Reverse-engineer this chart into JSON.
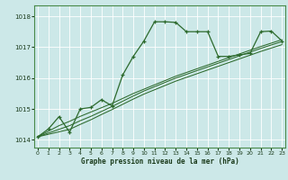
{
  "background_color": "#cce8e8",
  "grid_color": "#ffffff",
  "line_color": "#2d6a2d",
  "text_color": "#1a3a1a",
  "xlabel_text": "Graphe pression niveau de la mer (hPa)",
  "ylim": [
    1013.75,
    1018.35
  ],
  "xlim": [
    -0.3,
    23.3
  ],
  "yticks": [
    1014,
    1015,
    1016,
    1017,
    1018
  ],
  "xticks": [
    0,
    1,
    2,
    3,
    4,
    5,
    6,
    7,
    8,
    9,
    10,
    11,
    12,
    13,
    14,
    15,
    16,
    17,
    18,
    19,
    20,
    21,
    22,
    23
  ],
  "s1": [
    1014.1,
    1014.35,
    1014.75,
    1014.25,
    1015.0,
    1015.05,
    1015.3,
    1015.1,
    1016.1,
    1016.7,
    1017.2,
    1017.82,
    1017.82,
    1017.8,
    1017.5,
    1017.5,
    1017.5,
    1016.7,
    1016.7,
    1016.75,
    1016.8,
    1017.5,
    1017.52,
    1017.2
  ],
  "s2": [
    1014.1,
    1014.18,
    1014.26,
    1014.34,
    1014.5,
    1014.65,
    1014.82,
    1014.98,
    1015.15,
    1015.32,
    1015.48,
    1015.62,
    1015.76,
    1015.9,
    1016.02,
    1016.14,
    1016.26,
    1016.38,
    1016.5,
    1016.62,
    1016.74,
    1016.86,
    1016.97,
    1017.08
  ],
  "s3": [
    1014.1,
    1014.22,
    1014.34,
    1014.46,
    1014.62,
    1014.76,
    1014.92,
    1015.08,
    1015.25,
    1015.42,
    1015.58,
    1015.72,
    1015.86,
    1016.0,
    1016.12,
    1016.24,
    1016.36,
    1016.48,
    1016.6,
    1016.72,
    1016.84,
    1016.96,
    1017.07,
    1017.18
  ],
  "s4": [
    1014.1,
    1014.28,
    1014.46,
    1014.6,
    1014.76,
    1014.9,
    1015.04,
    1015.18,
    1015.34,
    1015.5,
    1015.64,
    1015.78,
    1015.92,
    1016.06,
    1016.18,
    1016.3,
    1016.42,
    1016.54,
    1016.66,
    1016.78,
    1016.9,
    1017.02,
    1017.13,
    1017.24
  ],
  "figsize": [
    3.2,
    2.0
  ],
  "dpi": 100
}
